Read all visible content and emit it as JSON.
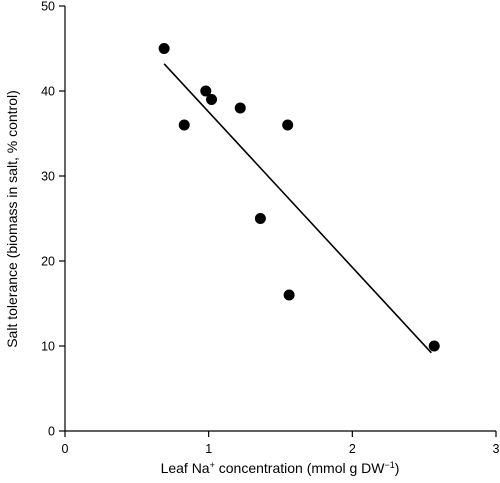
{
  "chart_data": {
    "type": "scatter",
    "title": "",
    "xlabel": {
      "prefix": "Leaf Na",
      "sup": "+",
      "mid": " concentration (mmol g DW",
      "sup2": "−1",
      "suffix": ")"
    },
    "ylabel": "Salt tolerance (biomass in salt, % control)",
    "xlim": [
      0,
      3
    ],
    "ylim": [
      0,
      50
    ],
    "xticks": [
      0,
      1,
      2,
      3
    ],
    "yticks": [
      0,
      10,
      20,
      30,
      40,
      50
    ],
    "grid": false,
    "points": [
      {
        "x": 0.69,
        "y": 45
      },
      {
        "x": 0.83,
        "y": 36
      },
      {
        "x": 0.98,
        "y": 40
      },
      {
        "x": 1.02,
        "y": 39
      },
      {
        "x": 1.22,
        "y": 38
      },
      {
        "x": 1.36,
        "y": 25
      },
      {
        "x": 1.55,
        "y": 36
      },
      {
        "x": 1.56,
        "y": 16
      },
      {
        "x": 2.57,
        "y": 10
      }
    ],
    "trendline": {
      "x": [
        0.69,
        2.55
      ],
      "y": [
        43.2,
        9.2
      ]
    }
  }
}
